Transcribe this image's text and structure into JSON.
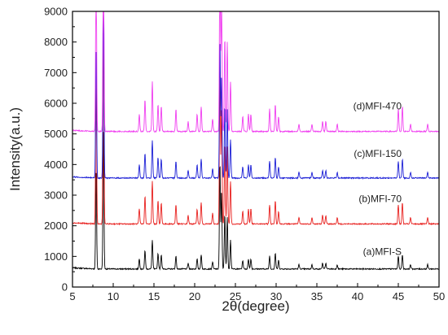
{
  "chart_data": {
    "type": "line",
    "xlabel": "2θ(degree)",
    "ylabel": "Intensity(a.u.)",
    "xlim": [
      5,
      50
    ],
    "ylim": [
      0,
      9000
    ],
    "xticks": [
      5,
      10,
      15,
      20,
      25,
      30,
      35,
      40,
      45,
      50
    ],
    "yticks": [
      0,
      1000,
      2000,
      3000,
      4000,
      5000,
      6000,
      7000,
      8000,
      9000
    ],
    "grid": false,
    "legend": "inline labels right of curves",
    "peaks": [
      [
        7.9,
        7.0
      ],
      [
        8.8,
        9.5
      ],
      [
        13.2,
        0.7
      ],
      [
        13.9,
        1.3
      ],
      [
        14.8,
        2.0
      ],
      [
        15.5,
        1.1
      ],
      [
        15.9,
        1.0
      ],
      [
        17.7,
        0.9
      ],
      [
        19.2,
        0.4
      ],
      [
        20.3,
        0.7
      ],
      [
        20.8,
        1.0
      ],
      [
        22.2,
        0.5
      ],
      [
        23.1,
        7.4
      ],
      [
        23.3,
        5.5
      ],
      [
        23.7,
        3.8
      ],
      [
        24.0,
        3.6
      ],
      [
        24.4,
        2.0
      ],
      [
        25.9,
        0.6
      ],
      [
        26.6,
        0.7
      ],
      [
        26.9,
        0.7
      ],
      [
        29.2,
        0.9
      ],
      [
        29.9,
        1.1
      ],
      [
        30.3,
        0.6
      ],
      [
        32.8,
        0.3
      ],
      [
        34.4,
        0.3
      ],
      [
        35.7,
        0.4
      ],
      [
        36.1,
        0.4
      ],
      [
        37.5,
        0.3
      ],
      [
        45.0,
        0.9
      ],
      [
        45.5,
        1.0
      ],
      [
        46.5,
        0.3
      ],
      [
        48.6,
        0.3
      ]
    ],
    "series": [
      {
        "name": "(a)MFI-S",
        "color": "#000000",
        "baseline": 590,
        "scale": 470,
        "label_x": 45.4,
        "label_y": 1050
      },
      {
        "name": "(b)MFI-70",
        "color": "#e8211f",
        "baseline": 2060,
        "scale": 700,
        "label_x": 45.4,
        "label_y": 2780
      },
      {
        "name": "(c)MFI-150",
        "color": "#1c1fd6",
        "baseline": 3560,
        "scale": 620,
        "label_x": 45.4,
        "label_y": 4250
      },
      {
        "name": "(d)MFI-470",
        "color": "#f03ff0",
        "baseline": 5080,
        "scale": 810,
        "label_x": 45.4,
        "label_y": 5800
      }
    ]
  }
}
